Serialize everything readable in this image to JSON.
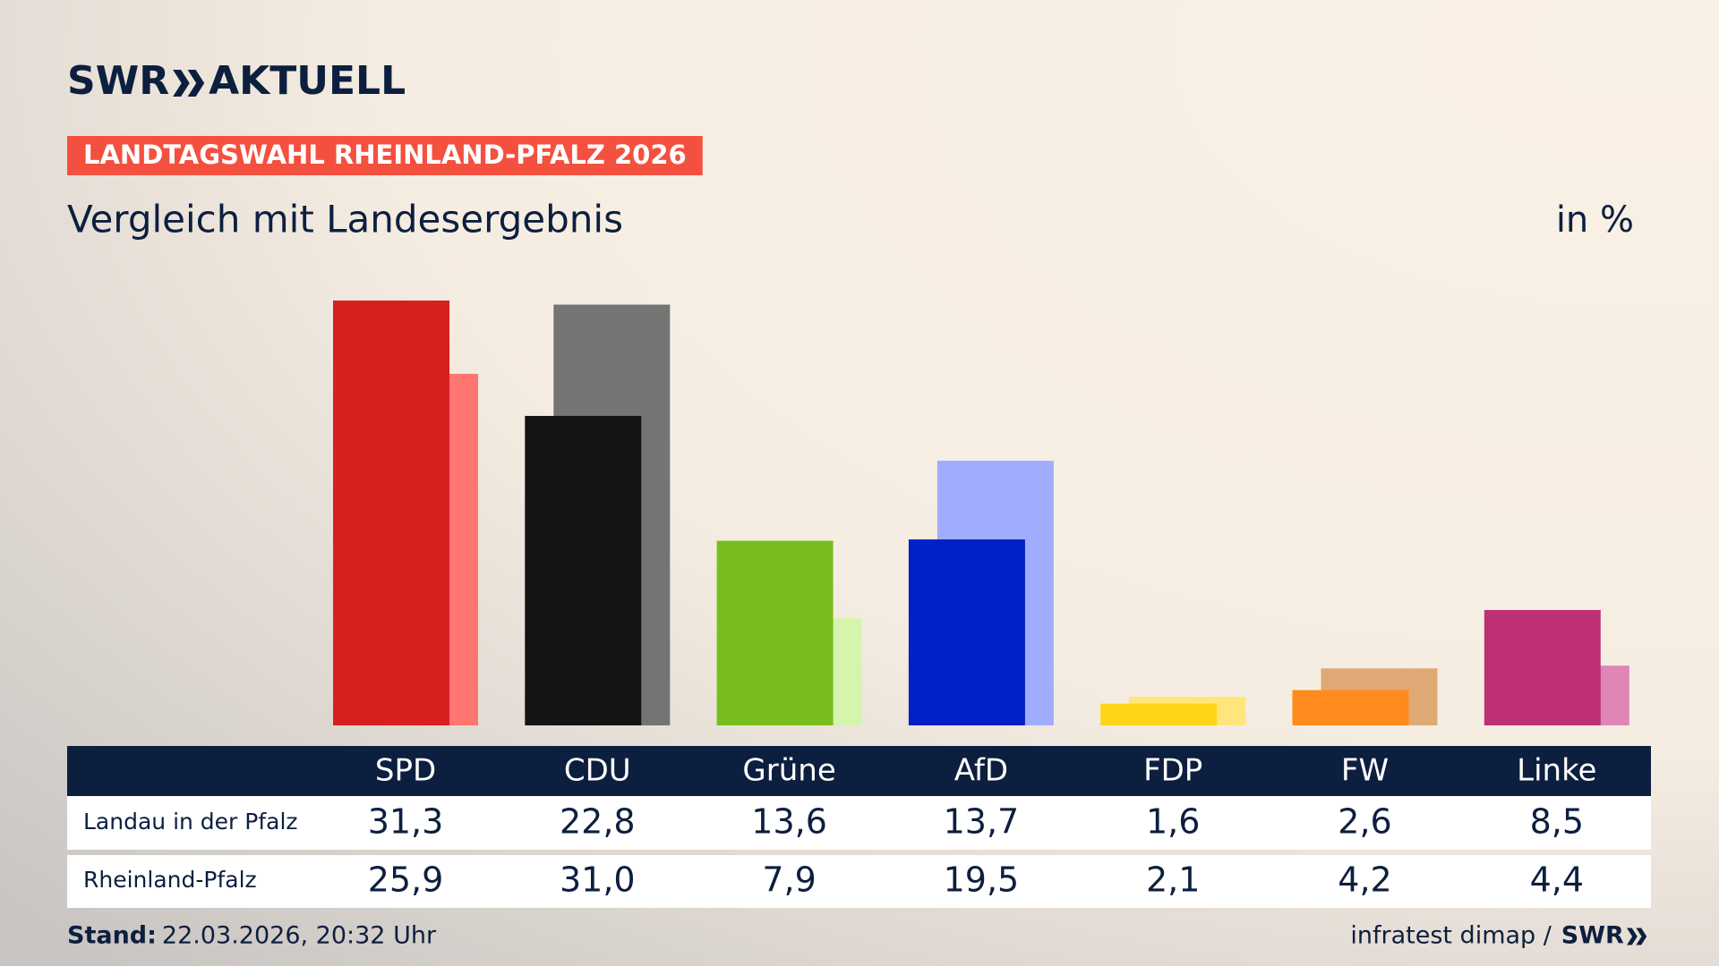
{
  "chart_data": {
    "type": "bar",
    "brand": "SWR",
    "product": "AKTUELL",
    "kicker": "LANDTAGSWAHL RHEINLAND-PFALZ 2026",
    "title": "Vergleich mit Landesergebnis",
    "unit": "in %",
    "categories": [
      "SPD",
      "CDU",
      "Grüne",
      "AfD",
      "FDP",
      "FW",
      "Linke"
    ],
    "series": [
      {
        "name": "Landau in der Pfalz",
        "colors": [
          "#d81f1f",
          "#141414",
          "#78bd1e",
          "#0020c8",
          "#ffd51a",
          "#ff8b1c",
          "#bd3075"
        ],
        "values": [
          31.3,
          22.8,
          13.6,
          13.7,
          1.6,
          2.6,
          8.5
        ],
        "value_labels": [
          "31,3",
          "22,8",
          "13,6",
          "13,7",
          "1,6",
          "2,6",
          "8,5"
        ]
      },
      {
        "name": "Rheinland-Pfalz",
        "colors": [
          "#ff7670",
          "#747474",
          "#d5f5ad",
          "#a0adff",
          "#ffe57a",
          "#dfa976",
          "#df86b6"
        ],
        "values": [
          25.9,
          31.0,
          7.9,
          19.5,
          2.1,
          4.2,
          4.4
        ],
        "value_labels": [
          "25,9",
          "31,0",
          "7,9",
          "19,5",
          "2,1",
          "4,2",
          "4,4"
        ]
      }
    ],
    "timestamp_label": "Stand:",
    "timestamp": "22.03.2026, 20:32 Uhr",
    "source": "infratest dimap /"
  }
}
